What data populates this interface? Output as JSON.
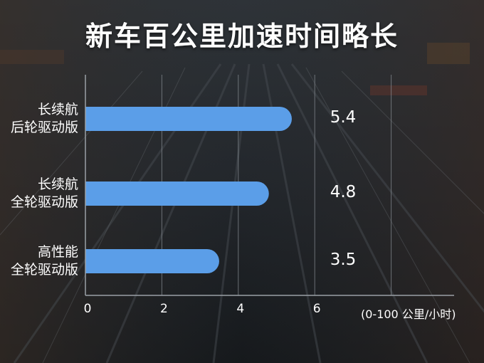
{
  "title": "新车百公里加速时间略长",
  "chart_data": {
    "type": "bar",
    "orientation": "horizontal",
    "categories": [
      [
        "长续航",
        "后轮驱动版"
      ],
      [
        "长续航",
        "全轮驱动版"
      ],
      [
        "高性能",
        "全轮驱动版"
      ]
    ],
    "values": [
      5.4,
      4.8,
      3.5
    ],
    "value_labels": [
      "5.4",
      "4.8",
      "3.5"
    ],
    "xticks": [
      "0",
      "2",
      "4",
      "6"
    ],
    "xlim": [
      0,
      8
    ],
    "unit": "(0-100 公里/小时)",
    "grid": true,
    "bar_color": "#5b9ee8"
  }
}
